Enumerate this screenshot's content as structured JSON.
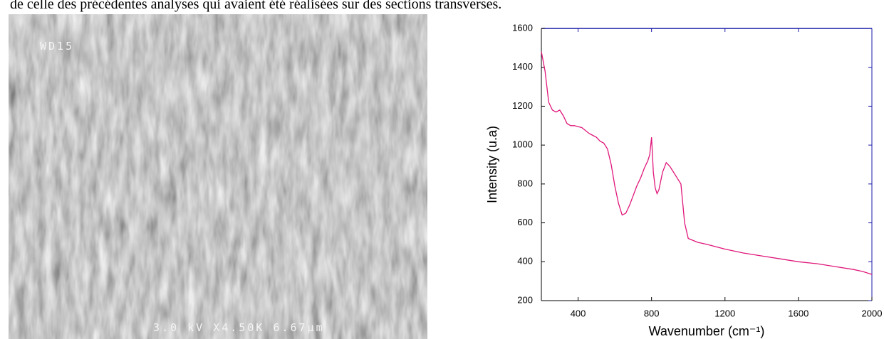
{
  "text": "de celle des précédentes analyses qui avaient été réalisées sur des sections transverses.",
  "image": {
    "label_top": "WD15",
    "label_bottom": "3.0 kV X4.50K 6.67µm"
  },
  "chart_data": {
    "type": "line",
    "xlabel": "Wavenumber (cm⁻¹)",
    "ylabel": "Intensity (u.a)",
    "color": "#e0177a",
    "x": [
      200,
      220,
      240,
      260,
      280,
      300,
      320,
      340,
      360,
      380,
      400,
      420,
      440,
      460,
      480,
      500,
      520,
      540,
      560,
      580,
      600,
      620,
      640,
      660,
      680,
      700,
      720,
      740,
      760,
      780,
      790,
      800,
      810,
      820,
      830,
      840,
      860,
      880,
      900,
      920,
      940,
      960,
      970,
      980,
      1000,
      1050,
      1100,
      1200,
      1300,
      1400,
      1500,
      1600,
      1700,
      1800,
      1900,
      1950,
      2000
    ],
    "values": [
      1480,
      1380,
      1220,
      1180,
      1170,
      1180,
      1150,
      1110,
      1100,
      1100,
      1095,
      1090,
      1075,
      1060,
      1050,
      1040,
      1020,
      1010,
      980,
      900,
      790,
      700,
      640,
      650,
      690,
      740,
      790,
      830,
      880,
      920,
      950,
      1040,
      860,
      780,
      750,
      770,
      860,
      910,
      890,
      860,
      830,
      800,
      700,
      600,
      520,
      500,
      490,
      465,
      445,
      430,
      415,
      400,
      390,
      375,
      360,
      350,
      335
    ],
    "xlim": [
      200,
      2000
    ],
    "ylim": [
      200,
      1600
    ],
    "xticks": [
      400,
      800,
      1200,
      1600,
      2000
    ],
    "yticks": [
      200,
      400,
      600,
      800,
      1000,
      1200,
      1400,
      1600
    ]
  }
}
